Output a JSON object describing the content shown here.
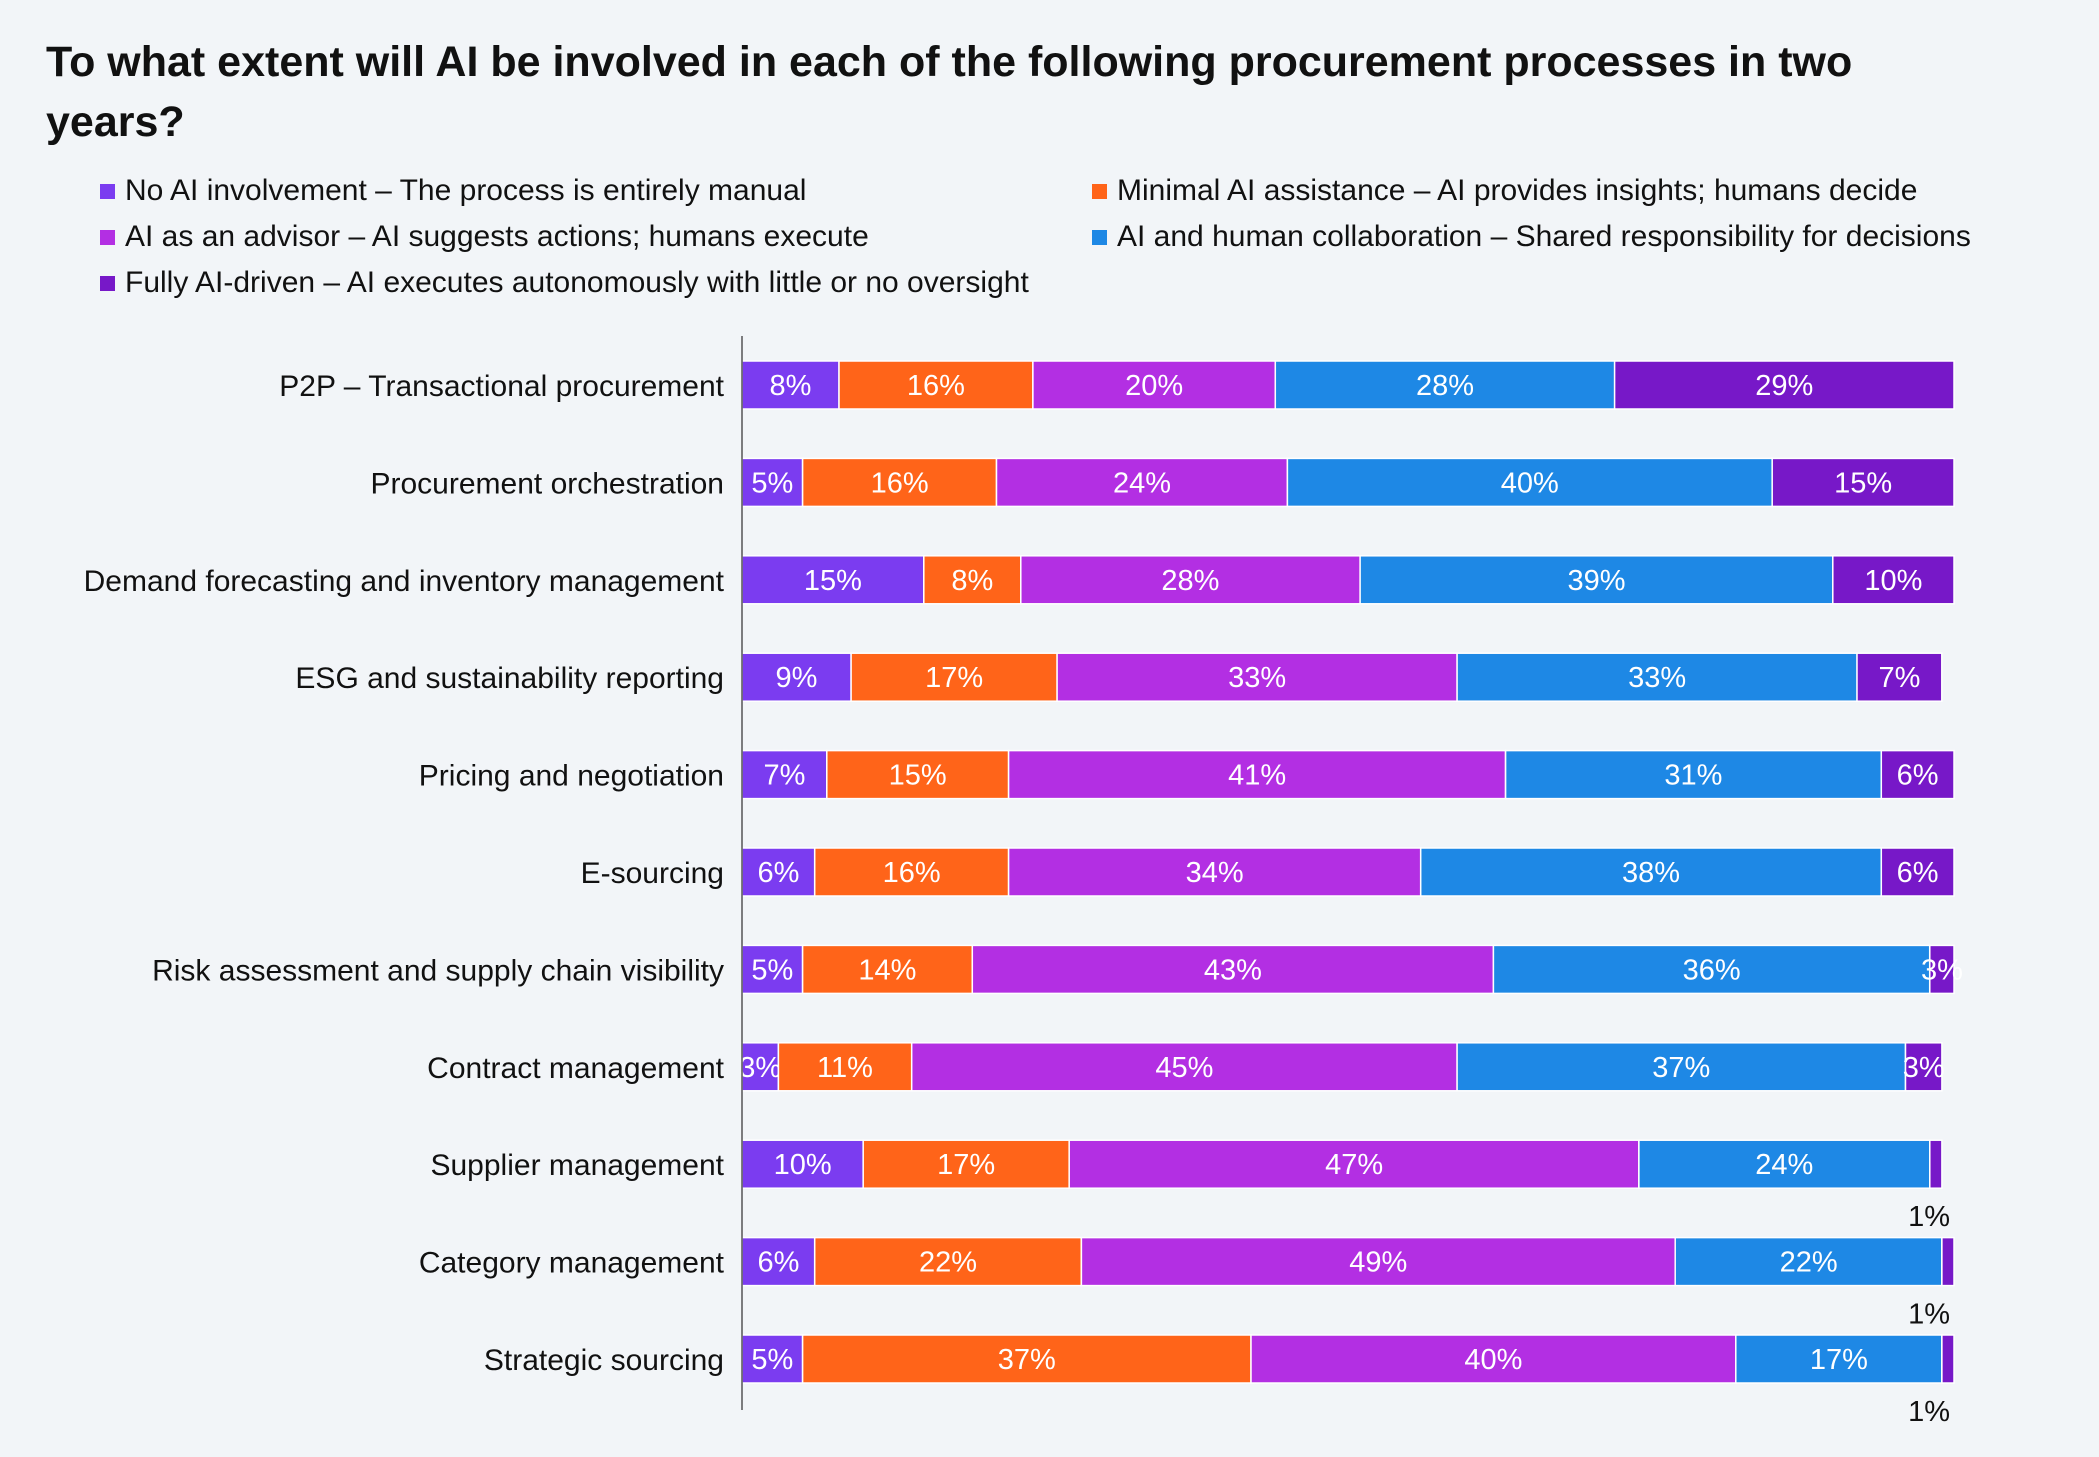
{
  "chart_data": {
    "type": "bar",
    "orientation": "horizontal",
    "stacked": true,
    "title": "To what extent will AI be involved in each of the following procurement processes in two years?",
    "xlabel": "",
    "ylabel": "",
    "xlim": [
      0,
      100
    ],
    "grid": false,
    "legend_position": "top",
    "categories": [
      "P2P – Transactional procurement",
      "Procurement orchestration",
      "Demand forecasting and inventory management",
      "ESG and sustainability reporting",
      "Pricing and negotiation",
      "E-sourcing",
      "Risk assessment and supply chain visibility",
      "Contract management",
      "Supplier management",
      "Category management",
      "Strategic sourcing"
    ],
    "series": [
      {
        "name": "No AI involvement – The process is entirely manual",
        "color": "#7b3cf0",
        "values": [
          8,
          5,
          15,
          9,
          7,
          6,
          5,
          3,
          10,
          6,
          5
        ]
      },
      {
        "name": "Minimal AI assistance – AI provides insights; humans decide",
        "color": "#ff6419",
        "values": [
          16,
          16,
          8,
          17,
          15,
          16,
          14,
          11,
          17,
          22,
          37
        ]
      },
      {
        "name": "AI as an advisor – AI suggests actions; humans execute",
        "color": "#b32fe3",
        "values": [
          20,
          24,
          28,
          33,
          41,
          34,
          43,
          45,
          47,
          49,
          40
        ]
      },
      {
        "name": "AI and human collaboration – Shared responsibility for decisions",
        "color": "#1e88e5",
        "values": [
          28,
          40,
          39,
          33,
          31,
          38,
          36,
          37,
          24,
          22,
          17
        ]
      },
      {
        "name": "Fully AI-driven – AI executes autonomously with little or no oversight",
        "color": "#7718c8",
        "values": [
          29,
          15,
          10,
          7,
          6,
          6,
          3,
          3,
          1,
          1,
          1
        ]
      }
    ],
    "label_suffix": "%"
  }
}
